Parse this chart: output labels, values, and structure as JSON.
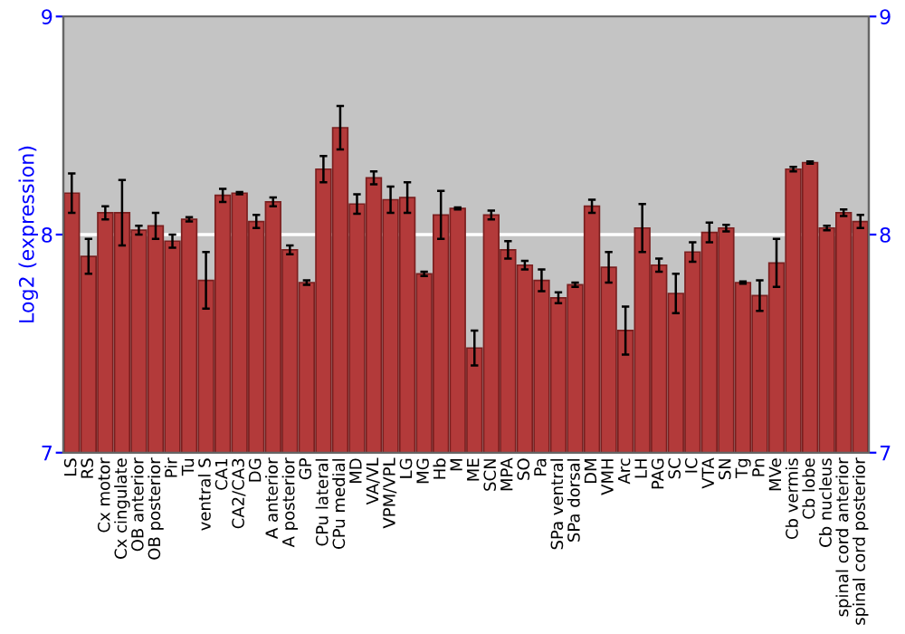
{
  "chart_data": {
    "type": "bar",
    "ylabel": "Log2 (expression)",
    "categories": [
      "LS",
      "RS",
      "Cx motor",
      "Cx cingulate",
      "OB anterior",
      "OB posterior",
      "Pir",
      "Tu",
      "ventral S",
      "CA1",
      "CA2/CA3",
      "DG",
      "A anterior",
      "A posterior",
      "GP",
      "CPu lateral",
      "CPu medial",
      "MD",
      "VA/VL",
      "VPM/VPL",
      "LG",
      "MG",
      "Hb",
      "M",
      "ME",
      "SCN",
      "MPA",
      "SO",
      "Pa",
      "SPa ventral",
      "SPa dorsal",
      "DM",
      "VMH",
      "Arc",
      "LH",
      "PAG",
      "SC",
      "IC",
      "VTA",
      "SN",
      "Tg",
      "Pn",
      "MVe",
      "Cb vermis",
      "Cb lobe",
      "Cb nucleus",
      "spinal cord anterior",
      "spinal cord posterior"
    ],
    "values": [
      8.19,
      7.9,
      8.1,
      8.1,
      8.02,
      8.04,
      7.97,
      8.07,
      7.79,
      8.18,
      8.19,
      8.06,
      8.15,
      7.93,
      7.78,
      8.3,
      8.49,
      8.14,
      8.26,
      8.16,
      8.17,
      7.82,
      8.09,
      8.12,
      7.48,
      8.09,
      7.93,
      7.86,
      7.79,
      7.71,
      7.77,
      8.13,
      7.85,
      7.56,
      8.03,
      7.86,
      7.73,
      7.92,
      8.01,
      8.03,
      7.78,
      7.72,
      7.87,
      8.3,
      8.33,
      8.03,
      8.1,
      8.06
    ],
    "errors": [
      0.09,
      0.08,
      0.03,
      0.15,
      0.02,
      0.06,
      0.03,
      0.01,
      0.13,
      0.03,
      0.005,
      0.03,
      0.02,
      0.02,
      0.01,
      0.06,
      0.1,
      0.045,
      0.03,
      0.06,
      0.07,
      0.01,
      0.11,
      0.005,
      0.08,
      0.02,
      0.04,
      0.02,
      0.05,
      0.025,
      0.01,
      0.03,
      0.07,
      0.11,
      0.11,
      0.03,
      0.09,
      0.045,
      0.045,
      0.015,
      0.005,
      0.07,
      0.11,
      0.01,
      0.005,
      0.01,
      0.015,
      0.03
    ],
    "color": "#b33a3a",
    "ylim": [
      7,
      9
    ],
    "yticks": [
      7,
      8,
      9
    ],
    "y2lim": [
      7,
      9
    ],
    "y2ticks": [
      7,
      8,
      9
    ],
    "grid": "y"
  }
}
